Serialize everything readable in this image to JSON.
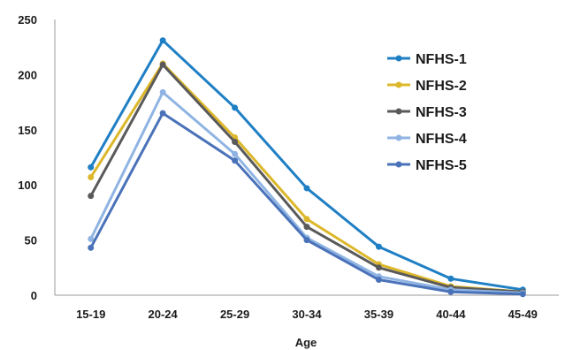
{
  "chart_data": {
    "type": "line",
    "title": "",
    "xlabel": "Age",
    "ylabel": "",
    "categories": [
      "15-19",
      "20-24",
      "25-29",
      "30-34",
      "35-39",
      "40-44",
      "45-49"
    ],
    "ylim": [
      0,
      250
    ],
    "yticks": [
      0,
      50,
      100,
      150,
      200,
      250
    ],
    "grid": false,
    "legend_position": "top-right",
    "series": [
      {
        "name": "NFHS-1",
        "color": "#1f7fc4",
        "values": [
          116,
          231,
          170,
          97,
          44,
          15,
          5
        ]
      },
      {
        "name": "NFHS-2",
        "color": "#dcb72a",
        "values": [
          107,
          210,
          143,
          69,
          28,
          8,
          3
        ]
      },
      {
        "name": "NFHS-3",
        "color": "#5a5a5a",
        "values": [
          90,
          209,
          139,
          62,
          25,
          7,
          3
        ]
      },
      {
        "name": "NFHS-4",
        "color": "#8fb4e3",
        "values": [
          51,
          184,
          128,
          52,
          17,
          5,
          2
        ]
      },
      {
        "name": "NFHS-5",
        "color": "#4a72b9",
        "values": [
          43,
          165,
          122,
          50,
          14,
          3,
          1
        ]
      }
    ]
  }
}
